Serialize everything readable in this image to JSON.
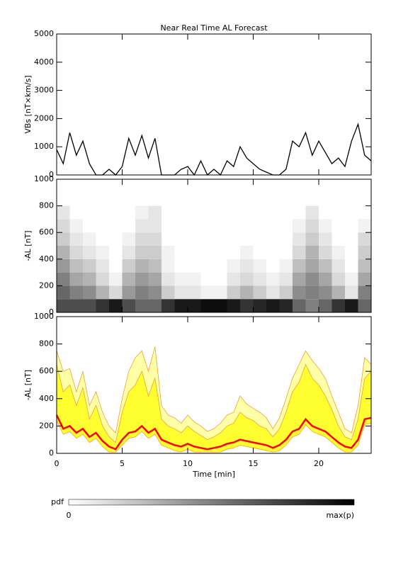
{
  "chart_data": [
    {
      "type": "line",
      "title": "Near Real Time AL Forecast",
      "ylabel": "VBs [nT×km/s]",
      "color": "#000000",
      "x": [
        0,
        0.5,
        1,
        1.5,
        2,
        2.5,
        3,
        3.5,
        4,
        4.5,
        5,
        5.5,
        6,
        6.5,
        7,
        7.5,
        8,
        8.5,
        9,
        9.5,
        10,
        10.5,
        11,
        11.5,
        12,
        12.5,
        13,
        13.5,
        14,
        14.5,
        15,
        15.5,
        16,
        16.5,
        17,
        17.5,
        18,
        18.5,
        19,
        19.5,
        20,
        20.5,
        21,
        21.5,
        22,
        22.5,
        23,
        23.5,
        24
      ],
      "values": [
        900,
        400,
        1500,
        700,
        1200,
        400,
        0,
        0,
        200,
        0,
        300,
        1300,
        700,
        1400,
        600,
        1300,
        0,
        0,
        0,
        200,
        300,
        0,
        500,
        0,
        200,
        0,
        500,
        300,
        1000,
        600,
        400,
        200,
        100,
        0,
        0,
        200,
        1200,
        1000,
        1500,
        700,
        1200,
        800,
        400,
        600,
        300,
        1200,
        1800,
        700,
        500
      ],
      "xlim": [
        0,
        24
      ],
      "xticks": [
        0,
        5,
        10,
        15,
        20
      ],
      "ylim": [
        0,
        5000
      ],
      "yticks": [
        0,
        1000,
        2000,
        3000,
        4000,
        5000
      ]
    },
    {
      "type": "heatmap",
      "ylabel": "-AL [nT]",
      "xbins": [
        0,
        1,
        2,
        3,
        4,
        5,
        6,
        7,
        8,
        9,
        10,
        11,
        12,
        13,
        14,
        15,
        16,
        17,
        18,
        19,
        20,
        21,
        22,
        23,
        24
      ],
      "ybins": [
        0,
        100,
        200,
        300,
        400,
        500,
        600,
        700,
        800
      ],
      "values": [
        [
          0.7,
          0.7,
          0.7,
          0.8,
          0.9,
          0.7,
          0.6,
          0.6,
          0.8,
          0.9,
          0.9,
          0.95,
          0.95,
          0.9,
          0.8,
          0.85,
          0.9,
          0.85,
          0.6,
          0.5,
          0.6,
          0.8,
          0.9,
          0.6
        ],
        [
          0.6,
          0.5,
          0.45,
          0.3,
          0.15,
          0.4,
          0.5,
          0.45,
          0.2,
          0.1,
          0.1,
          0.05,
          0.05,
          0.2,
          0.3,
          0.2,
          0.1,
          0.2,
          0.45,
          0.5,
          0.45,
          0.3,
          0.1,
          0.5
        ],
        [
          0.5,
          0.35,
          0.3,
          0.15,
          0.05,
          0.3,
          0.4,
          0.35,
          0.1,
          0.05,
          0.05,
          0,
          0,
          0.1,
          0.15,
          0.1,
          0.05,
          0.1,
          0.35,
          0.45,
          0.35,
          0.15,
          0.05,
          0.35
        ],
        [
          0.4,
          0.25,
          0.2,
          0.1,
          0,
          0.2,
          0.3,
          0.25,
          0.05,
          0,
          0,
          0,
          0,
          0.05,
          0.1,
          0.05,
          0,
          0.05,
          0.25,
          0.35,
          0.25,
          0.1,
          0,
          0.25
        ],
        [
          0.3,
          0.15,
          0.1,
          0.05,
          0,
          0.1,
          0.2,
          0.2,
          0.05,
          0,
          0,
          0,
          0,
          0,
          0.05,
          0,
          0,
          0,
          0.15,
          0.3,
          0.15,
          0.05,
          0,
          0.2
        ],
        [
          0.2,
          0.1,
          0.05,
          0,
          0,
          0.05,
          0.15,
          0.15,
          0,
          0,
          0,
          0,
          0,
          0,
          0,
          0,
          0,
          0,
          0.1,
          0.2,
          0.1,
          0,
          0,
          0.15
        ],
        [
          0.15,
          0.05,
          0,
          0,
          0,
          0,
          0.1,
          0.1,
          0,
          0,
          0,
          0,
          0,
          0,
          0,
          0,
          0,
          0,
          0.05,
          0.15,
          0.05,
          0,
          0,
          0.05
        ],
        [
          0.1,
          0,
          0,
          0,
          0,
          0,
          0.05,
          0.1,
          0,
          0,
          0,
          0,
          0,
          0,
          0,
          0,
          0,
          0,
          0,
          0.1,
          0,
          0,
          0,
          0
        ]
      ],
      "xlim": [
        0,
        24
      ],
      "xticks": [
        0,
        5,
        10,
        15,
        20
      ],
      "ylim": [
        0,
        1000
      ],
      "yticks": [
        0,
        200,
        400,
        600,
        800,
        1000
      ]
    },
    {
      "type": "band",
      "ylabel": "-AL [nT]",
      "xlabel": "Time [min]",
      "x": [
        0,
        0.5,
        1,
        1.5,
        2,
        2.5,
        3,
        3.5,
        4,
        4.5,
        5,
        5.5,
        6,
        6.5,
        7,
        7.5,
        8,
        8.5,
        9,
        9.5,
        10,
        10.5,
        11,
        11.5,
        12,
        12.5,
        13,
        13.5,
        14,
        14.5,
        15,
        15.5,
        16,
        16.5,
        17,
        17.5,
        18,
        18.5,
        19,
        19.5,
        20,
        20.5,
        21,
        21.5,
        22,
        22.5,
        23,
        23.5,
        24
      ],
      "series": [
        {
          "color": "#f0a030",
          "fill": "#ffffa8",
          "values": [
            750,
            600,
            620,
            450,
            600,
            350,
            450,
            300,
            200,
            150,
            400,
            600,
            700,
            750,
            600,
            780,
            350,
            280,
            260,
            220,
            280,
            230,
            200,
            160,
            180,
            220,
            280,
            300,
            420,
            360,
            330,
            300,
            260,
            180,
            260,
            400,
            550,
            650,
            750,
            680,
            620,
            550,
            420,
            300,
            180,
            150,
            350,
            700,
            650
          ]
        },
        {
          "color": "#f0a030",
          "fill": "#ffff30",
          "values": [
            650,
            450,
            500,
            350,
            480,
            250,
            350,
            200,
            120,
            80,
            300,
            450,
            500,
            600,
            420,
            550,
            250,
            200,
            180,
            150,
            200,
            160,
            130,
            100,
            120,
            150,
            200,
            220,
            300,
            260,
            240,
            200,
            180,
            120,
            180,
            300,
            450,
            520,
            650,
            550,
            500,
            420,
            320,
            200,
            120,
            100,
            250,
            550,
            600
          ]
        },
        {
          "color": "#f0a030",
          "values": [
            240,
            140,
            160,
            110,
            140,
            80,
            110,
            50,
            10,
            10,
            60,
            110,
            120,
            160,
            110,
            140,
            60,
            40,
            20,
            10,
            30,
            10,
            10,
            10,
            10,
            10,
            30,
            40,
            60,
            50,
            40,
            30,
            20,
            10,
            20,
            60,
            120,
            140,
            210,
            160,
            140,
            120,
            80,
            40,
            10,
            10,
            60,
            210,
            220
          ]
        },
        {
          "color": "#ff0000",
          "values": [
            280,
            180,
            200,
            150,
            180,
            120,
            150,
            90,
            50,
            30,
            100,
            150,
            160,
            200,
            150,
            180,
            100,
            80,
            60,
            50,
            70,
            50,
            40,
            30,
            40,
            50,
            70,
            80,
            100,
            90,
            80,
            70,
            60,
            40,
            60,
            100,
            160,
            180,
            250,
            200,
            180,
            160,
            120,
            80,
            50,
            40,
            100,
            250,
            260
          ]
        }
      ],
      "xlim": [
        0,
        24
      ],
      "xticks": [
        0,
        5,
        10,
        15,
        20
      ],
      "ylim": [
        0,
        1000
      ],
      "yticks": [
        0,
        200,
        400,
        600,
        800,
        1000
      ]
    }
  ],
  "colorbar": {
    "label": "pdf",
    "min_label": 0,
    "max_label": "max(p)"
  }
}
